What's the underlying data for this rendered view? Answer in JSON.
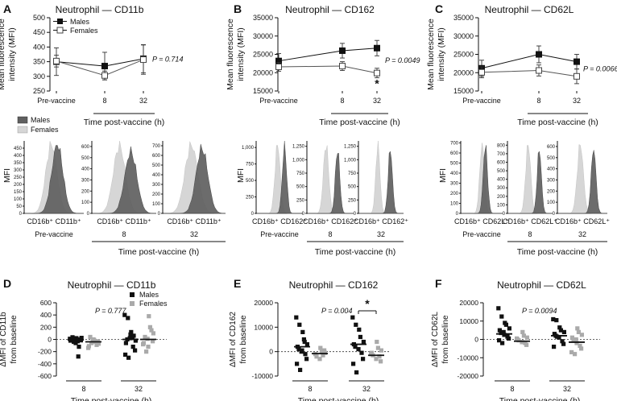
{
  "figure": {
    "top_x_label": "Time post-vaccine (h)",
    "top_x_ticks": [
      "Pre-vaccine",
      "8",
      "32"
    ],
    "top_y_label_1": "Mean fluorescence",
    "top_y_label_2": "intensity (MFI)",
    "hist_y_label": "MFI",
    "hist_legend": [
      "Males",
      "Females"
    ],
    "hist_time_label": "Time post-vaccine (h)",
    "hist_sublabels": [
      "Pre-vaccine",
      "8",
      "32"
    ],
    "bottom_x_label": "Time post-vaccine (h)",
    "bottom_x_ticks": [
      "8",
      "32"
    ],
    "bottom_y_label_2": "from baseline",
    "colors": {
      "male": "#111111",
      "female": "#aaaaaa",
      "hist_male": "#5f5f5f",
      "hist_female": "#d6d6d6"
    }
  },
  "chart_data": [
    {
      "panel": "A",
      "type": "line",
      "title": "Neutrophil — CD11b",
      "categories": [
        "Pre-vaccine",
        "8",
        "32"
      ],
      "series": [
        {
          "name": "Males",
          "values": [
            350,
            335,
            360
          ],
          "err": [
            47,
            47,
            48
          ]
        },
        {
          "name": "Females",
          "values": [
            352,
            303,
            357
          ],
          "err": [
            20,
            15,
            50
          ]
        }
      ],
      "yticks": [
        250,
        300,
        350,
        400,
        450,
        500
      ],
      "ylim": [
        250,
        500
      ],
      "ylabel": "Mean fluorescence intensity (MFI)",
      "xlabel": "Time post-vaccine (h)",
      "pvalue": "P = 0.714",
      "star": "",
      "legend": [
        "Males",
        "Females"
      ]
    },
    {
      "panel": "B",
      "type": "line",
      "title": "Neutrophil — CD162",
      "categories": [
        "Pre-vaccine",
        "8",
        "32"
      ],
      "series": [
        {
          "name": "Males",
          "values": [
            23200,
            26000,
            26700
          ],
          "err": [
            2000,
            2000,
            2100
          ]
        },
        {
          "name": "Females",
          "values": [
            21600,
            21800,
            19900
          ],
          "err": [
            1200,
            1200,
            1300
          ]
        }
      ],
      "yticks": [
        15000,
        20000,
        25000,
        30000,
        35000
      ],
      "ylim": [
        15000,
        35000
      ],
      "ylabel": "Mean fluorescence intensity (MFI)",
      "xlabel": "Time post-vaccine (h)",
      "pvalue": "P = 0.0049",
      "star": "*"
    },
    {
      "panel": "C",
      "type": "line",
      "title": "Neutrophil — CD62L",
      "categories": [
        "Pre-vaccine",
        "8",
        "32"
      ],
      "series": [
        {
          "name": "Males",
          "values": [
            21200,
            25000,
            23000
          ],
          "err": [
            2200,
            2300,
            2000
          ]
        },
        {
          "name": "Females",
          "values": [
            20100,
            20600,
            19000
          ],
          "err": [
            1500,
            1500,
            2000
          ]
        }
      ],
      "yticks": [
        15000,
        20000,
        25000,
        30000,
        35000
      ],
      "ylim": [
        15000,
        35000
      ],
      "ylabel": "Mean fluorescence intensity (MFI)",
      "xlabel": "Time post-vaccine (h)",
      "pvalue": "P = 0.0066",
      "star": ""
    },
    {
      "panel": "A-hist",
      "type": "area",
      "ylabel": "MFI",
      "histograms": [
        {
          "label": "CD16b⁺ CD11b⁺",
          "sublabel": "Pre-vaccine",
          "ymax": 500,
          "yticks": [
            0,
            50,
            100,
            150,
            200,
            250,
            300,
            350,
            400,
            450
          ],
          "female_peak": 0.45,
          "male_peak": 0.55,
          "female_width": 0.2,
          "male_width": 0.2,
          "female_h": 0.95,
          "male_h": 0.95
        },
        {
          "label": "CD16b⁺ CD11b⁺",
          "sublabel": "8",
          "ymax": 650,
          "yticks": [
            0,
            100,
            200,
            300,
            400,
            500,
            600
          ],
          "female_peak": 0.42,
          "male_peak": 0.6,
          "female_width": 0.2,
          "male_width": 0.2,
          "female_h": 0.93,
          "male_h": 0.85
        },
        {
          "label": "CD16b⁺ CD11b⁺",
          "sublabel": "32",
          "ymax": 750,
          "yticks": [
            0,
            100,
            200,
            300,
            400,
            500,
            600,
            700
          ],
          "female_peak": 0.45,
          "male_peak": 0.62,
          "female_width": 0.22,
          "male_width": 0.2,
          "female_h": 0.94,
          "male_h": 0.9
        }
      ]
    },
    {
      "panel": "B-hist",
      "type": "area",
      "ylabel": "MFI",
      "histograms": [
        {
          "label": "CD16b⁺ CD162⁺",
          "sublabel": "Pre-vaccine",
          "ymax": 1100,
          "yticks": [
            0,
            250,
            500,
            750,
            1000
          ],
          "yticklabels": [
            "0",
            "250",
            "500",
            "750",
            "1,000"
          ],
          "female_peak": 0.45,
          "male_peak": 0.6,
          "female_width": 0.12,
          "male_width": 0.1,
          "female_h": 0.95,
          "male_h": 0.92
        },
        {
          "label": "CD16b⁺ CD162⁺",
          "sublabel": "8",
          "ymax": 1350,
          "yticks": [
            0,
            250,
            500,
            750,
            1000,
            1250
          ],
          "yticklabels": [
            "0",
            "250",
            "500",
            "750",
            "1,000",
            "1,250"
          ],
          "female_peak": 0.4,
          "male_peak": 0.65,
          "female_width": 0.12,
          "male_width": 0.1,
          "female_h": 0.95,
          "male_h": 0.88
        },
        {
          "label": "CD16b⁺ CD162⁺",
          "sublabel": "32",
          "ymax": 1350,
          "yticks": [
            0,
            250,
            500,
            750,
            1000,
            1250
          ],
          "yticklabels": [
            "0",
            "250",
            "500",
            "750",
            "1,000",
            "1,250"
          ],
          "female_peak": 0.42,
          "male_peak": 0.7,
          "female_width": 0.1,
          "male_width": 0.1,
          "female_h": 0.95,
          "male_h": 0.88
        }
      ]
    },
    {
      "panel": "C-hist",
      "type": "area",
      "ylabel": "MFI",
      "histograms": [
        {
          "label": "CD16b⁺ CD62L⁺",
          "sublabel": "Pre-vaccine",
          "ymax": 720,
          "yticks": [
            0,
            100,
            200,
            300,
            400,
            500,
            600,
            700
          ],
          "female_peak": 0.5,
          "male_peak": 0.58,
          "female_width": 0.12,
          "male_width": 0.11,
          "female_h": 0.95,
          "male_h": 0.93
        },
        {
          "label": "CD16b⁺ CD62L⁺",
          "sublabel": "8",
          "ymax": 850,
          "yticks": [
            0,
            100,
            200,
            300,
            400,
            500,
            600,
            700,
            800
          ],
          "female_peak": 0.45,
          "male_peak": 0.7,
          "female_width": 0.12,
          "male_width": 0.1,
          "female_h": 0.95,
          "male_h": 0.88
        },
        {
          "label": "CD16b⁺ CD62L⁺",
          "sublabel": "32",
          "ymax": 650,
          "yticks": [
            0,
            100,
            200,
            300,
            400,
            500,
            600
          ],
          "female_peak": 0.45,
          "male_peak": 0.72,
          "female_width": 0.13,
          "male_width": 0.1,
          "female_h": 0.95,
          "male_h": 0.9
        }
      ]
    },
    {
      "panel": "D",
      "type": "scatter",
      "title": "Neutrophil — CD11b",
      "ylabel": "ΔMFI of CD11b from baseline",
      "xlabel": "Time post-vaccine (h)",
      "groups": [
        "8",
        "32"
      ],
      "males_8": [
        10,
        -5,
        20,
        -30,
        -15,
        5,
        35,
        -60,
        -120,
        0,
        -20,
        -40,
        15,
        -280,
        25
      ],
      "females_8": [
        -10,
        -40,
        -70,
        -110,
        40,
        0,
        -90,
        -30,
        -140,
        -60,
        -20
      ],
      "males_32": [
        400,
        350,
        120,
        40,
        -20,
        -60,
        0,
        80,
        60,
        -180,
        -250,
        -300,
        20,
        -120
      ],
      "females_32": [
        380,
        200,
        100,
        -60,
        40,
        -120,
        150,
        -30,
        -80,
        -200,
        10
      ],
      "medians": [
        -10,
        -40,
        0,
        0
      ],
      "yticks": [
        -600,
        -400,
        -200,
        0,
        200,
        400,
        600
      ],
      "ylim": [
        -600,
        600
      ],
      "pvalue": "P = 0.777",
      "star": "",
      "legend": [
        "Males",
        "Females"
      ]
    },
    {
      "panel": "E",
      "type": "scatter",
      "title": "Neutrophil — CD162",
      "ylabel": "ΔMFI of CD162 from baseline",
      "xlabel": "Time post-vaccine (h)",
      "groups": [
        "8",
        "32"
      ],
      "males_8": [
        14000,
        11000,
        8000,
        5000,
        3000,
        2000,
        1000,
        500,
        -1000,
        -3000,
        -5000,
        -7500,
        0,
        4000
      ],
      "females_8": [
        1500,
        0,
        -500,
        -1000,
        -2000,
        -3000,
        -1500,
        500
      ],
      "males_32": [
        14000,
        11000,
        9000,
        6000,
        4000,
        3000,
        2000,
        1000,
        -500,
        -3000,
        -5000,
        -8500
      ],
      "females_32": [
        4000,
        1500,
        500,
        -500,
        -1500,
        -3000,
        -2000,
        -4000,
        -1000
      ],
      "medians": [
        2000,
        -800,
        3000,
        -1500
      ],
      "yticks": [
        -10000,
        0,
        10000,
        20000
      ],
      "ylim": [
        -10000,
        20000
      ],
      "pvalue": "P = 0.004",
      "star": "*"
    },
    {
      "panel": "F",
      "type": "scatter",
      "title": "Neutrophil — CD62L",
      "ylabel": "ΔMFI of CD62L from baseline",
      "xlabel": "Time post-vaccine (h)",
      "groups": [
        "8",
        "32"
      ],
      "males_8": [
        17000,
        12500,
        9000,
        8000,
        6000,
        5000,
        3500,
        2500,
        1500,
        500,
        -500,
        -2000,
        4000
      ],
      "females_8": [
        4000,
        2000,
        1000,
        0,
        -500,
        -1500,
        -2000,
        -3000,
        500
      ],
      "males_32": [
        11000,
        10500,
        6500,
        5000,
        4000,
        3000,
        2000,
        1000,
        -1000,
        -2500,
        -4000,
        1500
      ],
      "females_32": [
        6000,
        4000,
        2500,
        1000,
        -500,
        -2000,
        -3500,
        -5000,
        -7000,
        -8000,
        0
      ],
      "medians": [
        3000,
        -1000,
        2000,
        -1500
      ],
      "yticks": [
        -20000,
        -10000,
        0,
        10000,
        20000
      ],
      "ylim": [
        -20000,
        20000
      ],
      "pvalue": "P = 0.0094",
      "star": ""
    }
  ]
}
